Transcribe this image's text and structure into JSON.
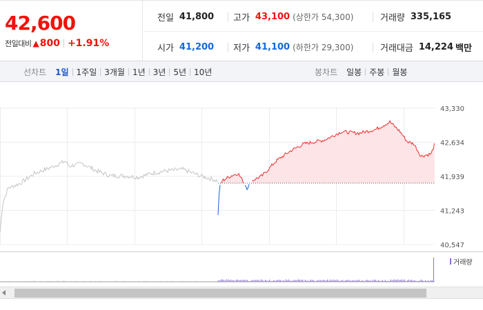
{
  "quote": {
    "price": "42,600",
    "change_label": "전일대비",
    "change_icon": "up-triangle-icon",
    "change_value": "800",
    "change_percent": "+1.91%",
    "prev_close": {
      "label": "전일",
      "value": "41,800"
    },
    "open": {
      "label": "시가",
      "value": "41,200"
    },
    "high": {
      "label": "고가",
      "value": "43,100",
      "limit": "(상한가 54,300)"
    },
    "low": {
      "label": "저가",
      "value": "41,100",
      "limit": "(하한가 29,300)"
    },
    "volume": {
      "label": "거래량",
      "value": "335,165"
    },
    "amount": {
      "label": "거래대금",
      "value": "14,224",
      "unit": "백만"
    },
    "colors": {
      "up": "#f0120c",
      "down": "#1468e0"
    }
  },
  "toolbar": {
    "line_chart_label": "선차트",
    "line_periods": [
      "1일",
      "1주일",
      "3개월",
      "1년",
      "3년",
      "5년",
      "10년"
    ],
    "active_period": "1일",
    "candle_chart_label": "봉차트",
    "candle_periods": [
      "일봉",
      "주봉",
      "월봉"
    ]
  },
  "chart_data": {
    "type": "line",
    "ytick_labels": [
      "43,330",
      "42,634",
      "41,939",
      "41,243",
      "40,547"
    ],
    "ylim": [
      40547,
      43330
    ],
    "reference_value": 41800,
    "grid": true,
    "series_colors": {
      "previous": "#c4c4c4",
      "up": "#ee2a2a",
      "down": "#1a63c8",
      "fill": "#fde4e6"
    }
  },
  "volume": {
    "legend_label": "거래량",
    "bar_color": "#8a6fd0"
  }
}
